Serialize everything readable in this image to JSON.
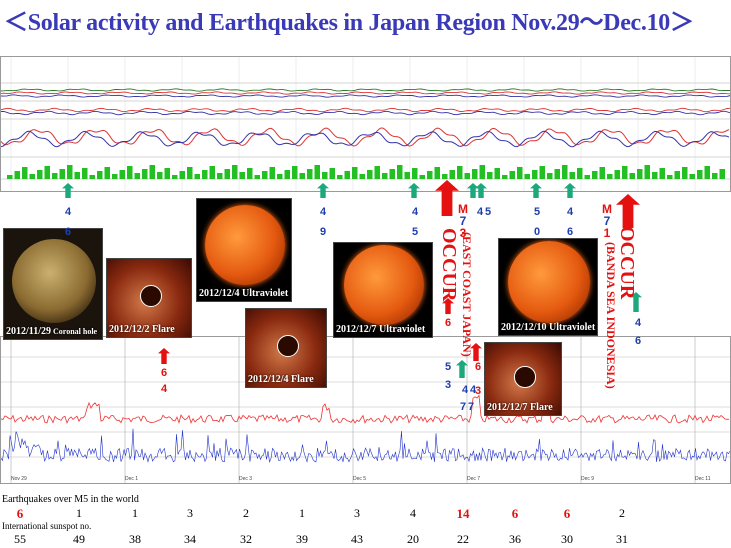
{
  "title": "＜Solar activity and Earthquakes in Japan Region Nov.29～Dec.10＞",
  "photos": [
    {
      "caption": "2012/11/29",
      "caption_small": " Coronal hole",
      "kind": "coronal"
    },
    {
      "caption": "2012/12/2 Flare",
      "kind": "flare"
    },
    {
      "caption": "2012/12/4 Ultraviolet",
      "kind": "uv"
    },
    {
      "caption": "2012/12/4 Flare",
      "kind": "flare"
    },
    {
      "caption": "2012/12/7 Ultraviolet",
      "kind": "uv"
    },
    {
      "caption": "2012/12/7 Flare",
      "kind": "flare"
    },
    {
      "caption": "2012/12/10 Ultraviolet",
      "kind": "uv"
    }
  ],
  "events": {
    "occur1": "OCCUR",
    "place1": "(EAST COAST  JAPAN)",
    "occur2": "OCCUR",
    "place2": "(BANDA SEA INDONESIA)"
  },
  "top_labels": [
    "4",
    "6",
    "4",
    "9",
    "4",
    "5",
    "4",
    "5",
    "5",
    "0",
    "4",
    "6",
    "4",
    "6"
  ],
  "quake_top_labels": [
    "M",
    "7",
    "3",
    "M",
    "7",
    "1"
  ],
  "bottom_labels": [
    "6",
    "4",
    "6",
    "5",
    "3",
    "6",
    "3",
    "4",
    "4",
    "7",
    "7"
  ],
  "bottom_chart_tick_labels": [
    "Nov 29",
    "Dec 1",
    "Dec 3",
    "Dec 5",
    "Dec 7",
    "Dec 9",
    "Dec 11"
  ],
  "bottom_row": {
    "label": "Earthquakes over M5 in the world",
    "sunspot_label": "International sunspot no."
  },
  "chart_data": {
    "type": "table",
    "rows": [
      {
        "name": "Earthquakes over M5 in the world",
        "values": [
          6,
          1,
          1,
          3,
          2,
          1,
          3,
          4,
          14,
          6,
          6,
          2
        ]
      },
      {
        "name": "International sunspot no.",
        "values": [
          55,
          49,
          38,
          34,
          32,
          39,
          43,
          20,
          22,
          36,
          30,
          31
        ]
      }
    ],
    "highlighted_quake_days": [
      0,
      8,
      9,
      10
    ]
  },
  "colors": {
    "title": "#3a3ab8",
    "highlight": "#e51010",
    "blue_label": "#1f3fae",
    "arrow_green": "#1aa87c",
    "arrow_red": "#e51010"
  }
}
